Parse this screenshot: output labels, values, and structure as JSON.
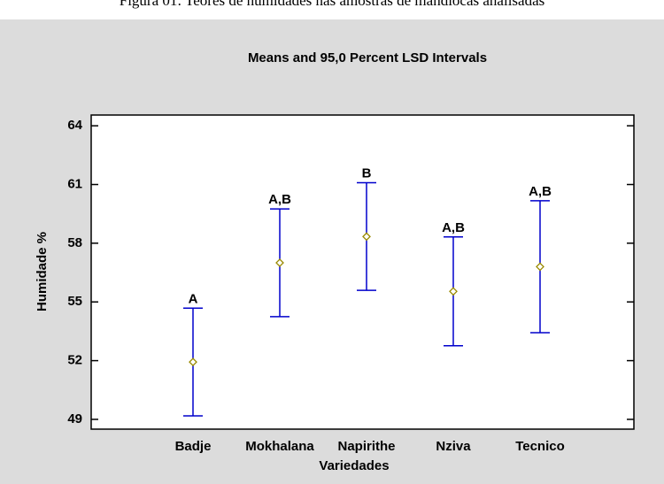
{
  "caption": "Figura 01: Teores de humidades nas amostras de mandiocas analisadas",
  "chart_data": {
    "type": "errorbar",
    "title": "Means and 95,0 Percent LSD Intervals",
    "x_label": "Variedades",
    "y_label": "Humidade %",
    "categories": [
      "Badje",
      "Mokhalana",
      "Napirithe",
      "Nziva",
      "Tecnico"
    ],
    "values": [
      51.93,
      57.0,
      58.34,
      55.54,
      56.8
    ],
    "errors": [
      2.75,
      2.75,
      2.75,
      2.78,
      3.37
    ],
    "annotations": [
      "A",
      "A,B",
      "B",
      "A,B",
      "A,B"
    ],
    "ylim": [
      48.5,
      64.55
    ],
    "yticks": [
      49,
      52,
      55,
      58,
      61,
      64
    ],
    "bar_color": "#0000cc",
    "marker_color": "#9a8a00"
  }
}
